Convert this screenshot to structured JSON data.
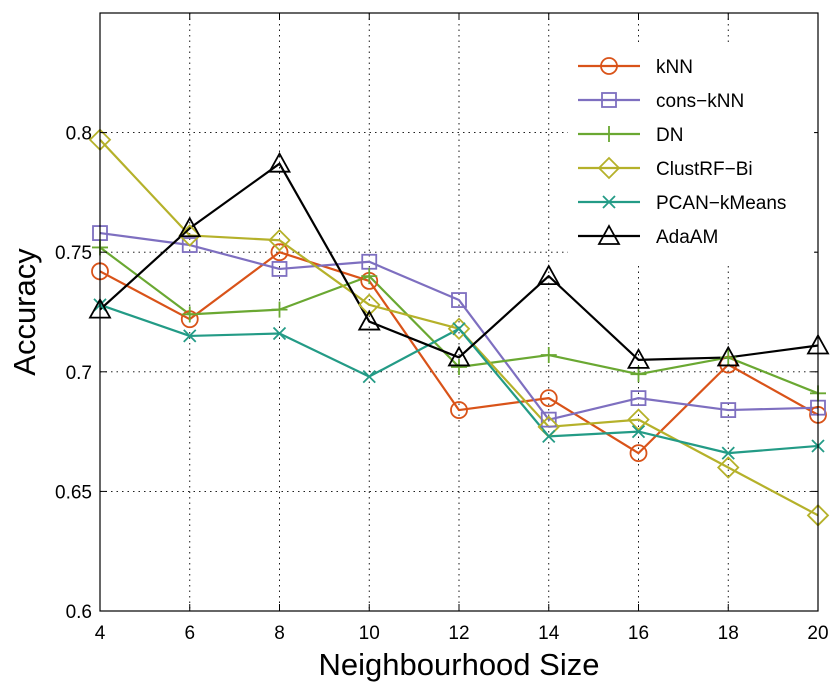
{
  "chart_data": {
    "type": "line",
    "title": "",
    "xlabel": "Neighbourhood Size",
    "ylabel": "Accuracy",
    "x": [
      4,
      6,
      8,
      10,
      12,
      14,
      16,
      18,
      20
    ],
    "xlim": [
      4,
      20
    ],
    "ylim": [
      0.6,
      0.85
    ],
    "xticks": [
      4,
      6,
      8,
      10,
      12,
      14,
      16,
      18,
      20
    ],
    "yticks": [
      0.6,
      0.65,
      0.7,
      0.75,
      0.8
    ],
    "ytick_labels": [
      "0.6",
      "0.65",
      "0.7",
      "0.75",
      "0.8"
    ],
    "grid": true,
    "legend_position": "top-right",
    "series": [
      {
        "name": "kNN",
        "color": "#d95319",
        "marker": "circle",
        "values": [
          0.742,
          0.722,
          0.75,
          0.738,
          0.684,
          0.689,
          0.666,
          0.703,
          0.682
        ]
      },
      {
        "name": "cons−kNN",
        "color": "#7e6fc0",
        "marker": "square",
        "values": [
          0.758,
          0.753,
          0.743,
          0.746,
          0.73,
          0.68,
          0.689,
          0.684,
          0.685
        ]
      },
      {
        "name": "DN",
        "color": "#6aa832",
        "marker": "plus",
        "values": [
          0.752,
          0.724,
          0.726,
          0.74,
          0.702,
          0.707,
          0.699,
          0.706,
          0.691
        ]
      },
      {
        "name": "ClustRF−Bi",
        "color": "#b5b12a",
        "marker": "diamond",
        "values": [
          0.797,
          0.757,
          0.755,
          0.728,
          0.718,
          0.677,
          0.68,
          0.66,
          0.64
        ]
      },
      {
        "name": "PCAN−kMeans",
        "color": "#239b86",
        "marker": "x",
        "values": [
          0.728,
          0.715,
          0.716,
          0.698,
          0.718,
          0.673,
          0.675,
          0.666,
          0.669
        ]
      },
      {
        "name": "AdaAM",
        "color": "#000000",
        "marker": "triangle",
        "values": [
          0.726,
          0.76,
          0.787,
          0.721,
          0.706,
          0.74,
          0.705,
          0.706,
          0.711
        ]
      }
    ]
  }
}
